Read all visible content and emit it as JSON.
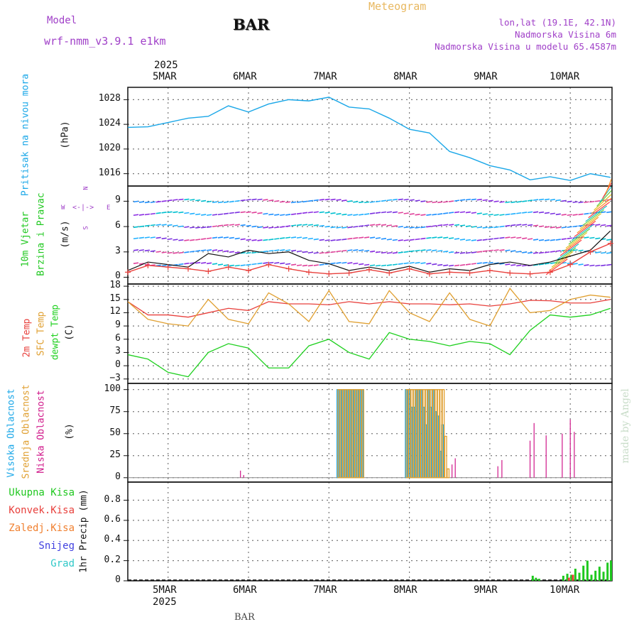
{
  "header": {
    "model_label": "Model",
    "model_name": "wrf-nmm_v3.9.1  e1km",
    "station": "BAR",
    "title": "Meteogram",
    "location": "lon,lat (19.1E, 42.1N)",
    "elevation": "Nadmorska Visina 6m",
    "model_elevation": "Nadmorska Visina u modelu 65.4587m"
  },
  "footer": {
    "station": "BAR",
    "credit": "made by Angel"
  },
  "colors": {
    "pressure": "#1aa7e8",
    "wind_label": "#1fc81f",
    "temp2m": "#e8403c",
    "sfc": "#e0a032",
    "dewpt": "#1fd01f",
    "high_cloud": "#1aa7e8",
    "mid_cloud": "#e0a032",
    "low_cloud": "#d0188a",
    "total_precip": "#1fc81f",
    "conv_precip": "#e8403c",
    "frz_precip": "#f08030",
    "snow": "#4040e0",
    "hail": "#30c8c8",
    "header_text": "#a040c8",
    "title": "#e8b860"
  },
  "chart_data": [
    {
      "type": "line",
      "panel": "pressure",
      "xlabel": "",
      "ylabel": [
        "Pritisak na nivou mora",
        "(hPa)"
      ],
      "x_unit": "days from 2025-03-04 12:00",
      "ylim": [
        1014,
        1030
      ],
      "yticks": [
        1016,
        1020,
        1024,
        1028
      ],
      "grid": true,
      "x": [
        0,
        0.25,
        0.5,
        0.75,
        1.0,
        1.25,
        1.5,
        1.75,
        2.0,
        2.25,
        2.5,
        2.75,
        3.0,
        3.25,
        3.5,
        3.75,
        4.0,
        4.25,
        4.5,
        4.75,
        5.0,
        5.25,
        5.5,
        5.75,
        6.0
      ],
      "series": [
        {
          "values": [
            1023.5,
            1023.6,
            1024.3,
            1025.0,
            1025.3,
            1027.0,
            1026.0,
            1027.3,
            1028.0,
            1027.8,
            1028.4,
            1026.8,
            1026.5,
            1025.0,
            1023.2,
            1022.6,
            1019.6,
            1018.6,
            1017.3,
            1016.6,
            1015.0,
            1015.5,
            1014.9,
            1016.0,
            1015.4
          ]
        }
      ]
    },
    {
      "type": "line",
      "panel": "wind",
      "ylabel": [
        "10m Vjetar",
        "Brzina i Pravac",
        "(m/s)"
      ],
      "compass": [
        "N",
        "W",
        "E",
        "S"
      ],
      "ylim": [
        -0.8,
        10.8
      ],
      "yticks": [
        0,
        3,
        6,
        9
      ],
      "grid": true,
      "x": [
        0,
        0.25,
        0.5,
        0.75,
        1.0,
        1.25,
        1.5,
        1.75,
        2.0,
        2.25,
        2.5,
        2.75,
        3.0,
        3.25,
        3.5,
        3.75,
        4.0,
        4.25,
        4.5,
        4.75,
        5.0,
        5.25,
        5.5,
        5.75,
        6.0
      ],
      "series": [
        {
          "values": [
            0.8,
            1.8,
            1.5,
            1.2,
            2.8,
            2.4,
            3.2,
            2.8,
            3.0,
            2.0,
            1.6,
            0.8,
            1.2,
            0.8,
            1.3,
            0.6,
            1.0,
            0.8,
            1.5,
            1.8,
            1.4,
            1.8,
            2.5,
            3.2,
            5.5
          ]
        },
        {
          "values": [
            0.6,
            1.4,
            1.2,
            1.0,
            0.7,
            1.2,
            0.8,
            1.5,
            1.0,
            0.6,
            0.4,
            0.5,
            0.9,
            0.5,
            1.0,
            0.4,
            0.6,
            0.5,
            0.8,
            0.5,
            0.4,
            0.6,
            1.5,
            3.0,
            4.0
          ]
        }
      ]
    },
    {
      "type": "line",
      "panel": "temperature",
      "ylabel": [
        "2m Temp",
        "SFC Temp",
        "dewpt Temp",
        "(C)"
      ],
      "ylim": [
        -4,
        18.5
      ],
      "yticks": [
        -3,
        0,
        3,
        6,
        9,
        12,
        15,
        18
      ],
      "grid": true,
      "x": [
        0,
        0.25,
        0.5,
        0.75,
        1.0,
        1.25,
        1.5,
        1.75,
        2.0,
        2.25,
        2.5,
        2.75,
        3.0,
        3.25,
        3.5,
        3.75,
        4.0,
        4.25,
        4.5,
        4.75,
        5.0,
        5.25,
        5.5,
        5.75,
        6.0
      ],
      "series": [
        {
          "name": "2m Temp",
          "values": [
            14.5,
            11.5,
            11.5,
            11.0,
            12.0,
            13.0,
            12.5,
            14.5,
            14.0,
            14.0,
            13.8,
            14.5,
            14.0,
            14.5,
            14.0,
            14.0,
            13.8,
            14.0,
            13.5,
            14.0,
            14.8,
            14.7,
            14.2,
            14.2,
            15.0
          ]
        },
        {
          "name": "SFC Temp",
          "values": [
            14.5,
            10.5,
            9.5,
            9.0,
            15.0,
            10.5,
            9.5,
            16.5,
            14.0,
            10.0,
            17.0,
            10.0,
            9.5,
            17.0,
            12.0,
            10.0,
            16.5,
            10.5,
            9.0,
            17.5,
            12.0,
            12.5,
            15.0,
            16.0,
            15.5
          ]
        },
        {
          "name": "dewpt Temp",
          "values": [
            2.5,
            1.5,
            -1.5,
            -2.5,
            3.0,
            5.0,
            4.0,
            -0.5,
            -0.5,
            4.5,
            6.0,
            3.0,
            1.5,
            7.5,
            6.0,
            5.5,
            4.5,
            5.5,
            5.0,
            2.5,
            8.0,
            11.5,
            11.0,
            11.5,
            13.0
          ]
        }
      ]
    },
    {
      "type": "bar",
      "panel": "clouds",
      "ylabel": [
        "Visoka Oblacnost",
        "Srednja Oblacnost",
        "Niska Oblacnost",
        "(%)"
      ],
      "ylim": [
        -5,
        107
      ],
      "yticks": [
        0,
        25,
        50,
        75,
        100
      ],
      "grid": true,
      "series": [
        {
          "name": "Visoka Oblacnost",
          "x": [
            2.6,
            2.63,
            2.66,
            2.69,
            2.72,
            2.75,
            2.78,
            2.81,
            2.84,
            2.87,
            2.9,
            3.45,
            3.48,
            3.51,
            3.54,
            3.57,
            3.6,
            3.63,
            3.66,
            3.69,
            3.72,
            3.75,
            3.78,
            3.81,
            3.84,
            3.87,
            3.9
          ],
          "values": [
            100,
            100,
            100,
            100,
            100,
            100,
            100,
            100,
            100,
            100,
            100,
            100,
            100,
            80,
            80,
            100,
            100,
            100,
            80,
            60,
            100,
            80,
            100,
            75,
            70,
            30,
            60
          ]
        },
        {
          "name": "Srednja Oblacnost",
          "x": [
            2.61,
            2.64,
            2.67,
            2.7,
            2.73,
            2.76,
            2.79,
            2.82,
            2.85,
            2.88,
            2.91,
            3.46,
            3.49,
            3.52,
            3.55,
            3.58,
            3.61,
            3.64,
            3.67,
            3.7,
            3.73,
            3.76,
            3.79,
            3.82,
            3.85,
            3.88,
            3.91,
            3.94,
            3.97
          ],
          "values": [
            100,
            100,
            100,
            100,
            100,
            100,
            100,
            100,
            100,
            100,
            100,
            100,
            100,
            100,
            100,
            100,
            100,
            100,
            100,
            100,
            100,
            100,
            100,
            100,
            100,
            100,
            100,
            47,
            10
          ]
        },
        {
          "name": "Niska Oblacnost",
          "x": [
            1.4,
            1.44,
            4.03,
            4.07,
            4.6,
            4.65,
            5.0,
            5.05,
            5.2,
            5.4,
            5.5,
            5.55
          ],
          "values": [
            8,
            3,
            15,
            22,
            13,
            20,
            42,
            62,
            48,
            50,
            66,
            52
          ]
        }
      ]
    },
    {
      "type": "bar",
      "panel": "precipitation",
      "ylabel": [
        "1hr Precip (mm)"
      ],
      "legend": [
        "Ukupna Kisa",
        "Konvek.Kisa",
        "Zaledj.Kisa",
        "Snijeg",
        "Grad"
      ],
      "ylim": [
        0,
        0.98
      ],
      "yticks": [
        0,
        0.2,
        0.4,
        0.6,
        0.8
      ],
      "grid": true,
      "series": [
        {
          "name": "Ukupna Kisa",
          "x": [
            5.02,
            5.06,
            5.1,
            5.4,
            5.45,
            5.5,
            5.55,
            5.6,
            5.65,
            5.7,
            5.75,
            5.8,
            5.85,
            5.9,
            5.95,
            6.0
          ],
          "values": [
            0.05,
            0.03,
            0.02,
            0.05,
            0.07,
            0.06,
            0.12,
            0.08,
            0.15,
            0.2,
            0.06,
            0.1,
            0.14,
            0.09,
            0.18,
            0.2
          ]
        },
        {
          "name": "Konvek.Kisa",
          "x": [
            5.47,
            5.52
          ],
          "values": [
            0.03,
            0.06
          ]
        }
      ],
      "x_ticks": [
        "5MAR",
        "6MAR",
        "7MAR",
        "8MAR",
        "9MAR",
        "10MAR"
      ],
      "year_label": "2025"
    }
  ]
}
